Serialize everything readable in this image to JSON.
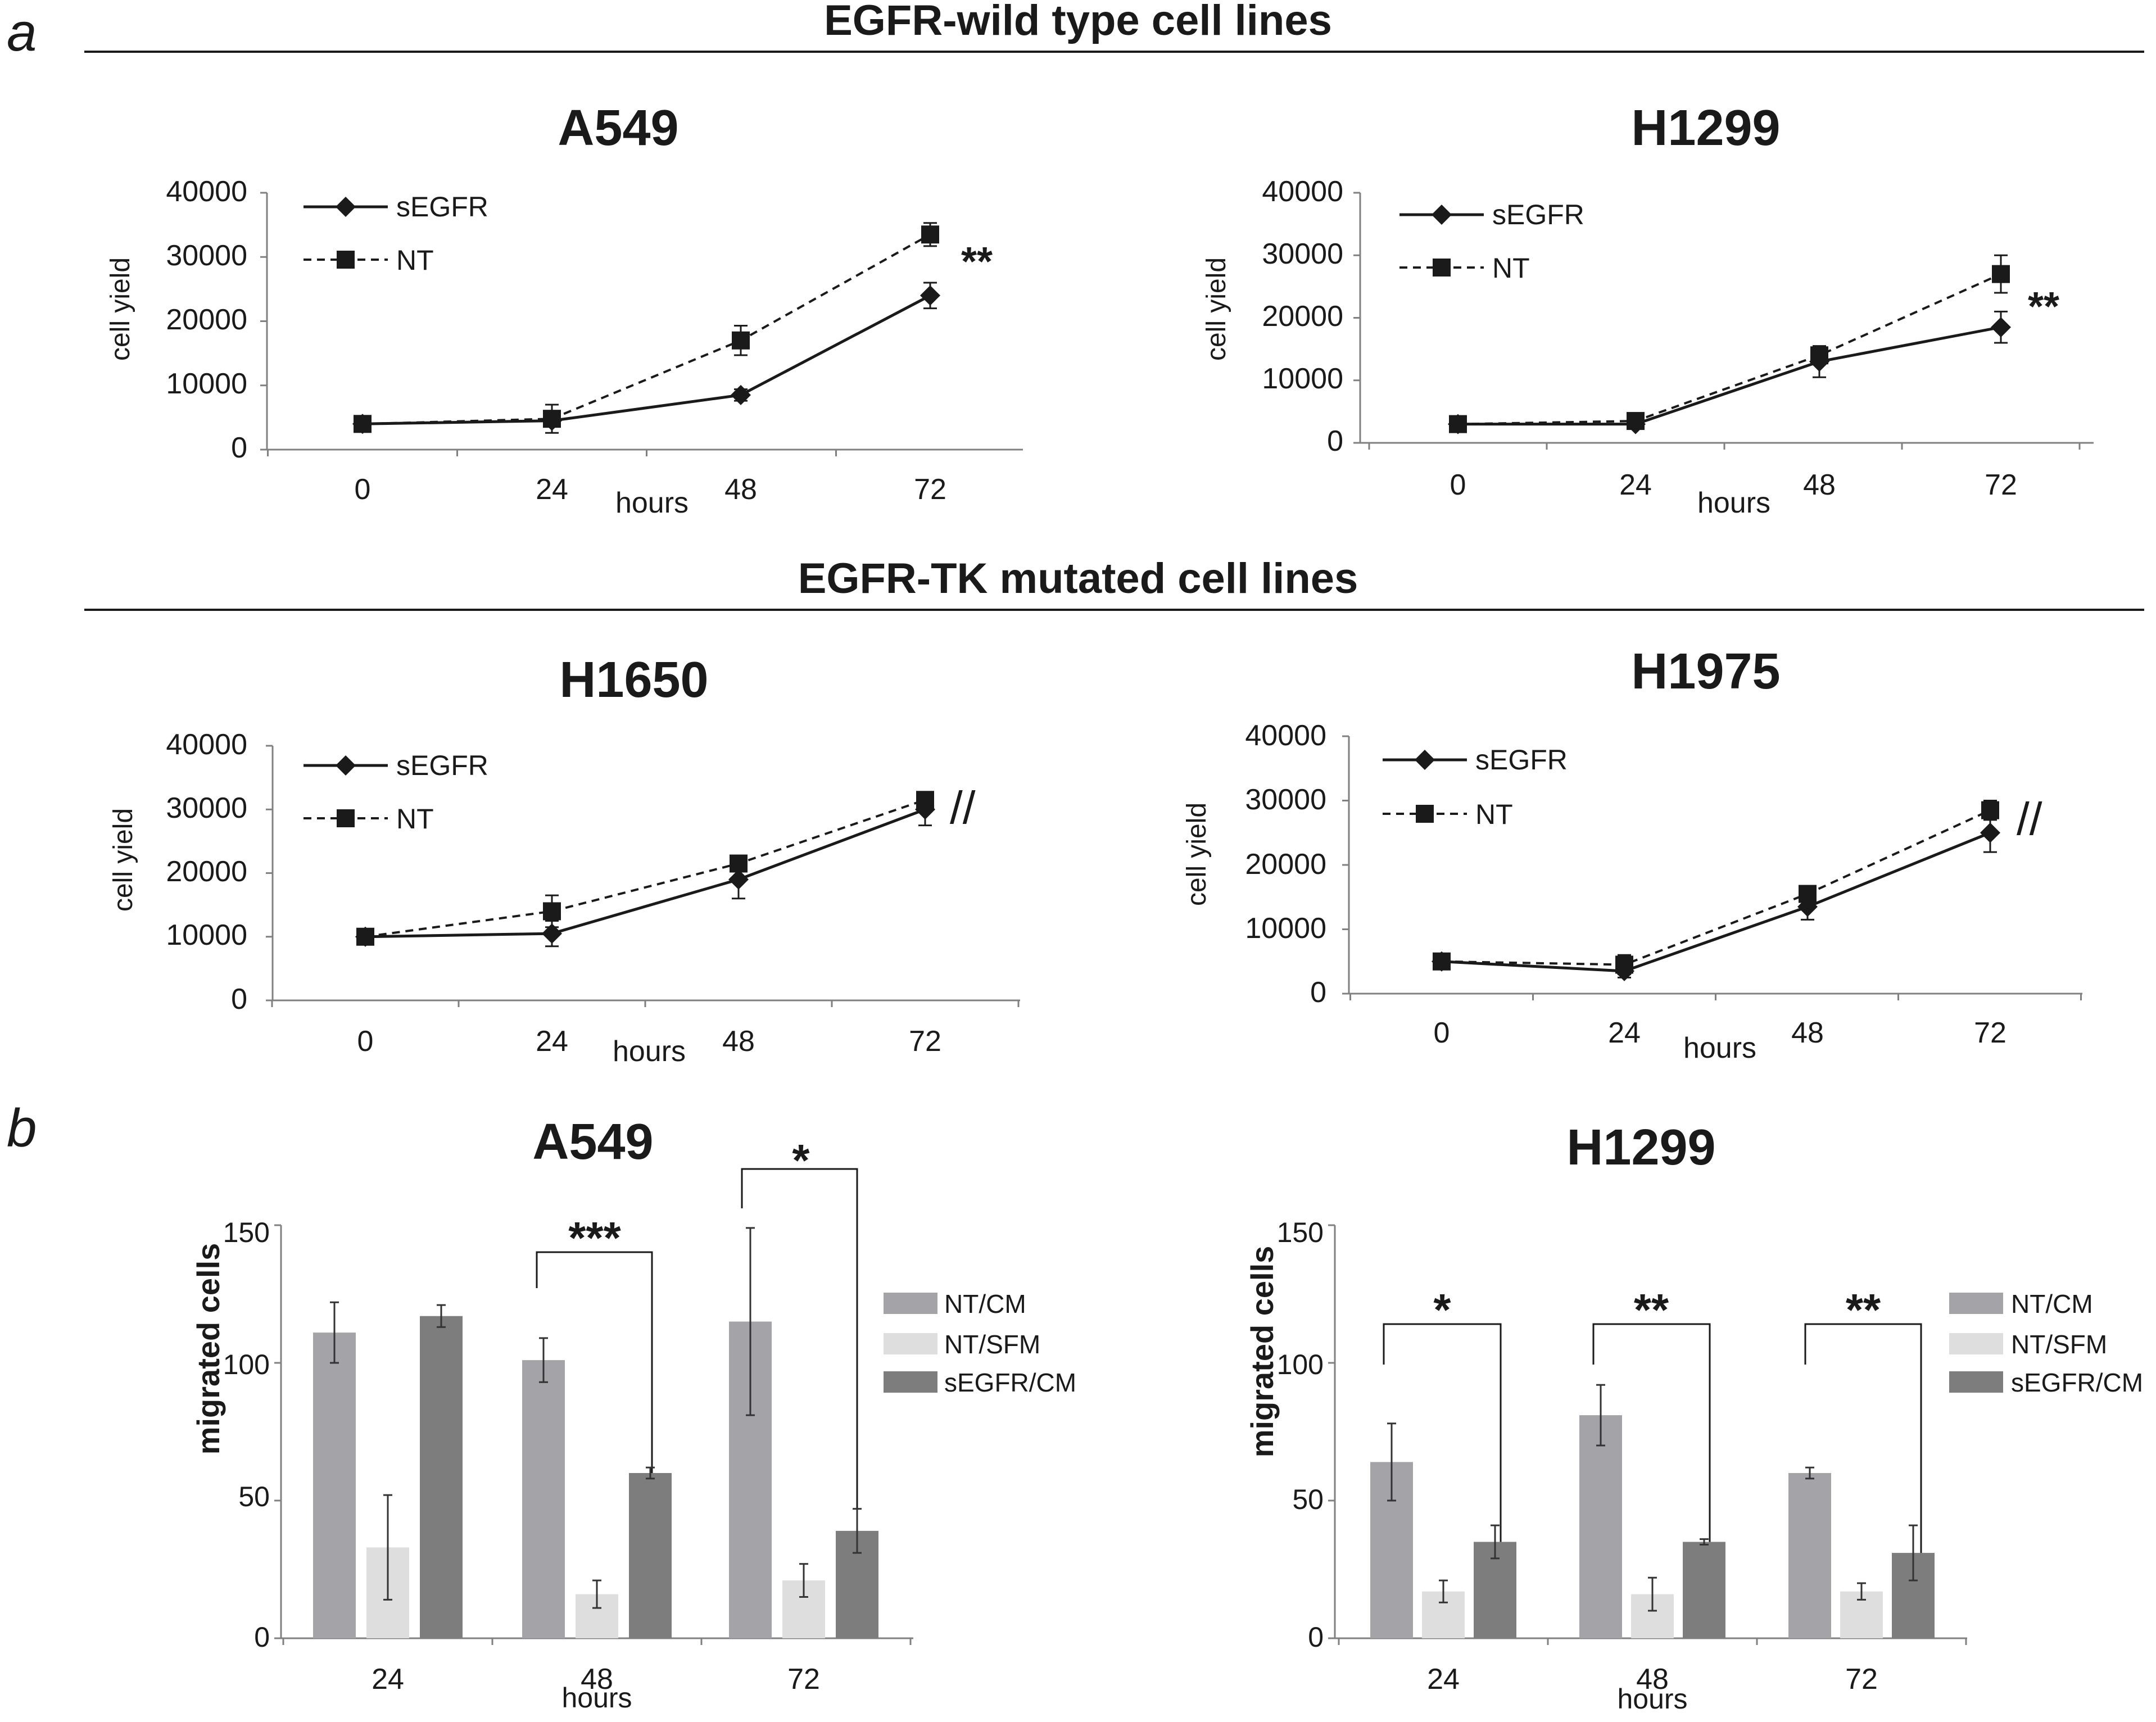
{
  "panel_labels": {
    "a": "a",
    "b": "b"
  },
  "sections": {
    "wild": "EGFR-wild type cell lines",
    "mutated": "EGFR-TK mutated cell lines"
  },
  "colors": {
    "axis": "#808080",
    "line": "#1a1a1a",
    "bar_nt_cm": "#a3a3a8",
    "bar_nt_sfm": "#dedede",
    "bar_segfr_cm": "#7d7d7d"
  },
  "chart_data": [
    {
      "id": "a549-growth",
      "type": "line",
      "title": "A549",
      "xlabel": "hours",
      "ylabel": "cell yield",
      "x": [
        0,
        24,
        48,
        72
      ],
      "ylim": [
        0,
        40000
      ],
      "yticks": [
        "0",
        "10000",
        "20000",
        "30000",
        "40000"
      ],
      "xticks": [
        "0",
        "24",
        "48",
        "72"
      ],
      "series": [
        {
          "name": "sEGFR",
          "marker": "diamond",
          "dash": false,
          "values": [
            4000,
            4500,
            8500,
            24000
          ],
          "errors": [
            500,
            800,
            900,
            2000
          ]
        },
        {
          "name": "NT",
          "marker": "square",
          "dash": true,
          "values": [
            4000,
            4800,
            17000,
            33500
          ],
          "errors": [
            500,
            2200,
            2300,
            1800
          ]
        }
      ],
      "annotation": "**"
    },
    {
      "id": "h1299-growth",
      "type": "line",
      "title": "H1299",
      "xlabel": "hours",
      "ylabel": "cell yield",
      "x": [
        0,
        24,
        48,
        72
      ],
      "ylim": [
        0,
        40000
      ],
      "yticks": [
        "0",
        "10000",
        "20000",
        "30000",
        "40000"
      ],
      "xticks": [
        "0",
        "24",
        "48",
        "72"
      ],
      "series": [
        {
          "name": "sEGFR",
          "marker": "diamond",
          "dash": false,
          "values": [
            3000,
            3000,
            13000,
            18500
          ],
          "errors": [
            400,
            500,
            2500,
            2500
          ]
        },
        {
          "name": "NT",
          "marker": "square",
          "dash": true,
          "values": [
            3000,
            3500,
            14000,
            27000
          ],
          "errors": [
            400,
            600,
            900,
            3000
          ]
        }
      ],
      "annotation": "**"
    },
    {
      "id": "h1650-growth",
      "type": "line",
      "title": "H1650",
      "xlabel": "hours",
      "ylabel": "cell yield",
      "x": [
        0,
        24,
        48,
        72
      ],
      "ylim": [
        0,
        40000
      ],
      "yticks": [
        "0",
        "10000",
        "20000",
        "30000",
        "40000"
      ],
      "xticks": [
        "0",
        "24",
        "48",
        "72"
      ],
      "series": [
        {
          "name": "sEGFR",
          "marker": "diamond",
          "dash": false,
          "values": [
            10000,
            10500,
            19000,
            30000
          ],
          "errors": [
            500,
            2000,
            3000,
            2500
          ]
        },
        {
          "name": "NT",
          "marker": "square",
          "dash": true,
          "values": [
            10000,
            14000,
            21500,
            31500
          ],
          "errors": [
            500,
            2500,
            1200,
            800
          ]
        }
      ],
      "annotation": "//"
    },
    {
      "id": "h1975-growth",
      "type": "line",
      "title": "H1975",
      "xlabel": "hours",
      "ylabel": "cell yield",
      "x": [
        0,
        24,
        48,
        72
      ],
      "ylim": [
        0,
        40000
      ],
      "yticks": [
        "0",
        "10000",
        "20000",
        "30000",
        "40000"
      ],
      "xticks": [
        "0",
        "24",
        "48",
        "72"
      ],
      "series": [
        {
          "name": "sEGFR",
          "marker": "diamond",
          "dash": false,
          "values": [
            5000,
            3500,
            13500,
            25000
          ],
          "errors": [
            600,
            1000,
            2000,
            3000
          ]
        },
        {
          "name": "NT",
          "marker": "square",
          "dash": true,
          "values": [
            5000,
            4500,
            15500,
            28500
          ],
          "errors": [
            600,
            1500,
            1200,
            1500
          ]
        }
      ],
      "annotation": "//"
    },
    {
      "id": "a549-migration",
      "type": "bar",
      "title": "A549",
      "xlabel": "hours",
      "ylabel": "migrated cells",
      "categories": [
        "24",
        "48",
        "72"
      ],
      "ylim": [
        0,
        150
      ],
      "yticks": [
        "0",
        "50",
        "100",
        "150"
      ],
      "series": [
        {
          "name": "NT/CM",
          "color_key": "bar_nt_cm",
          "values": [
            111,
            101,
            115
          ],
          "errors": [
            11,
            8,
            34
          ]
        },
        {
          "name": "NT/SFM",
          "color_key": "bar_nt_sfm",
          "values": [
            33,
            16,
            21
          ],
          "errors": [
            19,
            5,
            6
          ]
        },
        {
          "name": "sEGFR/CM",
          "color_key": "bar_segfr_cm",
          "values": [
            117,
            60,
            39
          ],
          "errors": [
            4,
            2,
            8
          ]
        }
      ],
      "significance": [
        {
          "category": "48",
          "label": "***"
        },
        {
          "category": "72",
          "label": "*"
        }
      ]
    },
    {
      "id": "h1299-migration",
      "type": "bar",
      "title": "H1299",
      "xlabel": "hours",
      "ylabel": "migrated cells",
      "categories": [
        "24",
        "48",
        "72"
      ],
      "ylim": [
        0,
        150
      ],
      "yticks": [
        "0",
        "50",
        "100",
        "150"
      ],
      "series": [
        {
          "name": "NT/CM",
          "color_key": "bar_nt_cm",
          "values": [
            64,
            81,
            60
          ],
          "errors": [
            14,
            11,
            2
          ]
        },
        {
          "name": "NT/SFM",
          "color_key": "bar_nt_sfm",
          "values": [
            17,
            16,
            17
          ],
          "errors": [
            4,
            6,
            3
          ]
        },
        {
          "name": "sEGFR/CM",
          "color_key": "bar_segfr_cm",
          "values": [
            35,
            35,
            31
          ],
          "errors": [
            6,
            1,
            10
          ]
        }
      ],
      "significance": [
        {
          "category": "24",
          "label": "*"
        },
        {
          "category": "48",
          "label": "**"
        },
        {
          "category": "72",
          "label": "**"
        }
      ]
    }
  ]
}
